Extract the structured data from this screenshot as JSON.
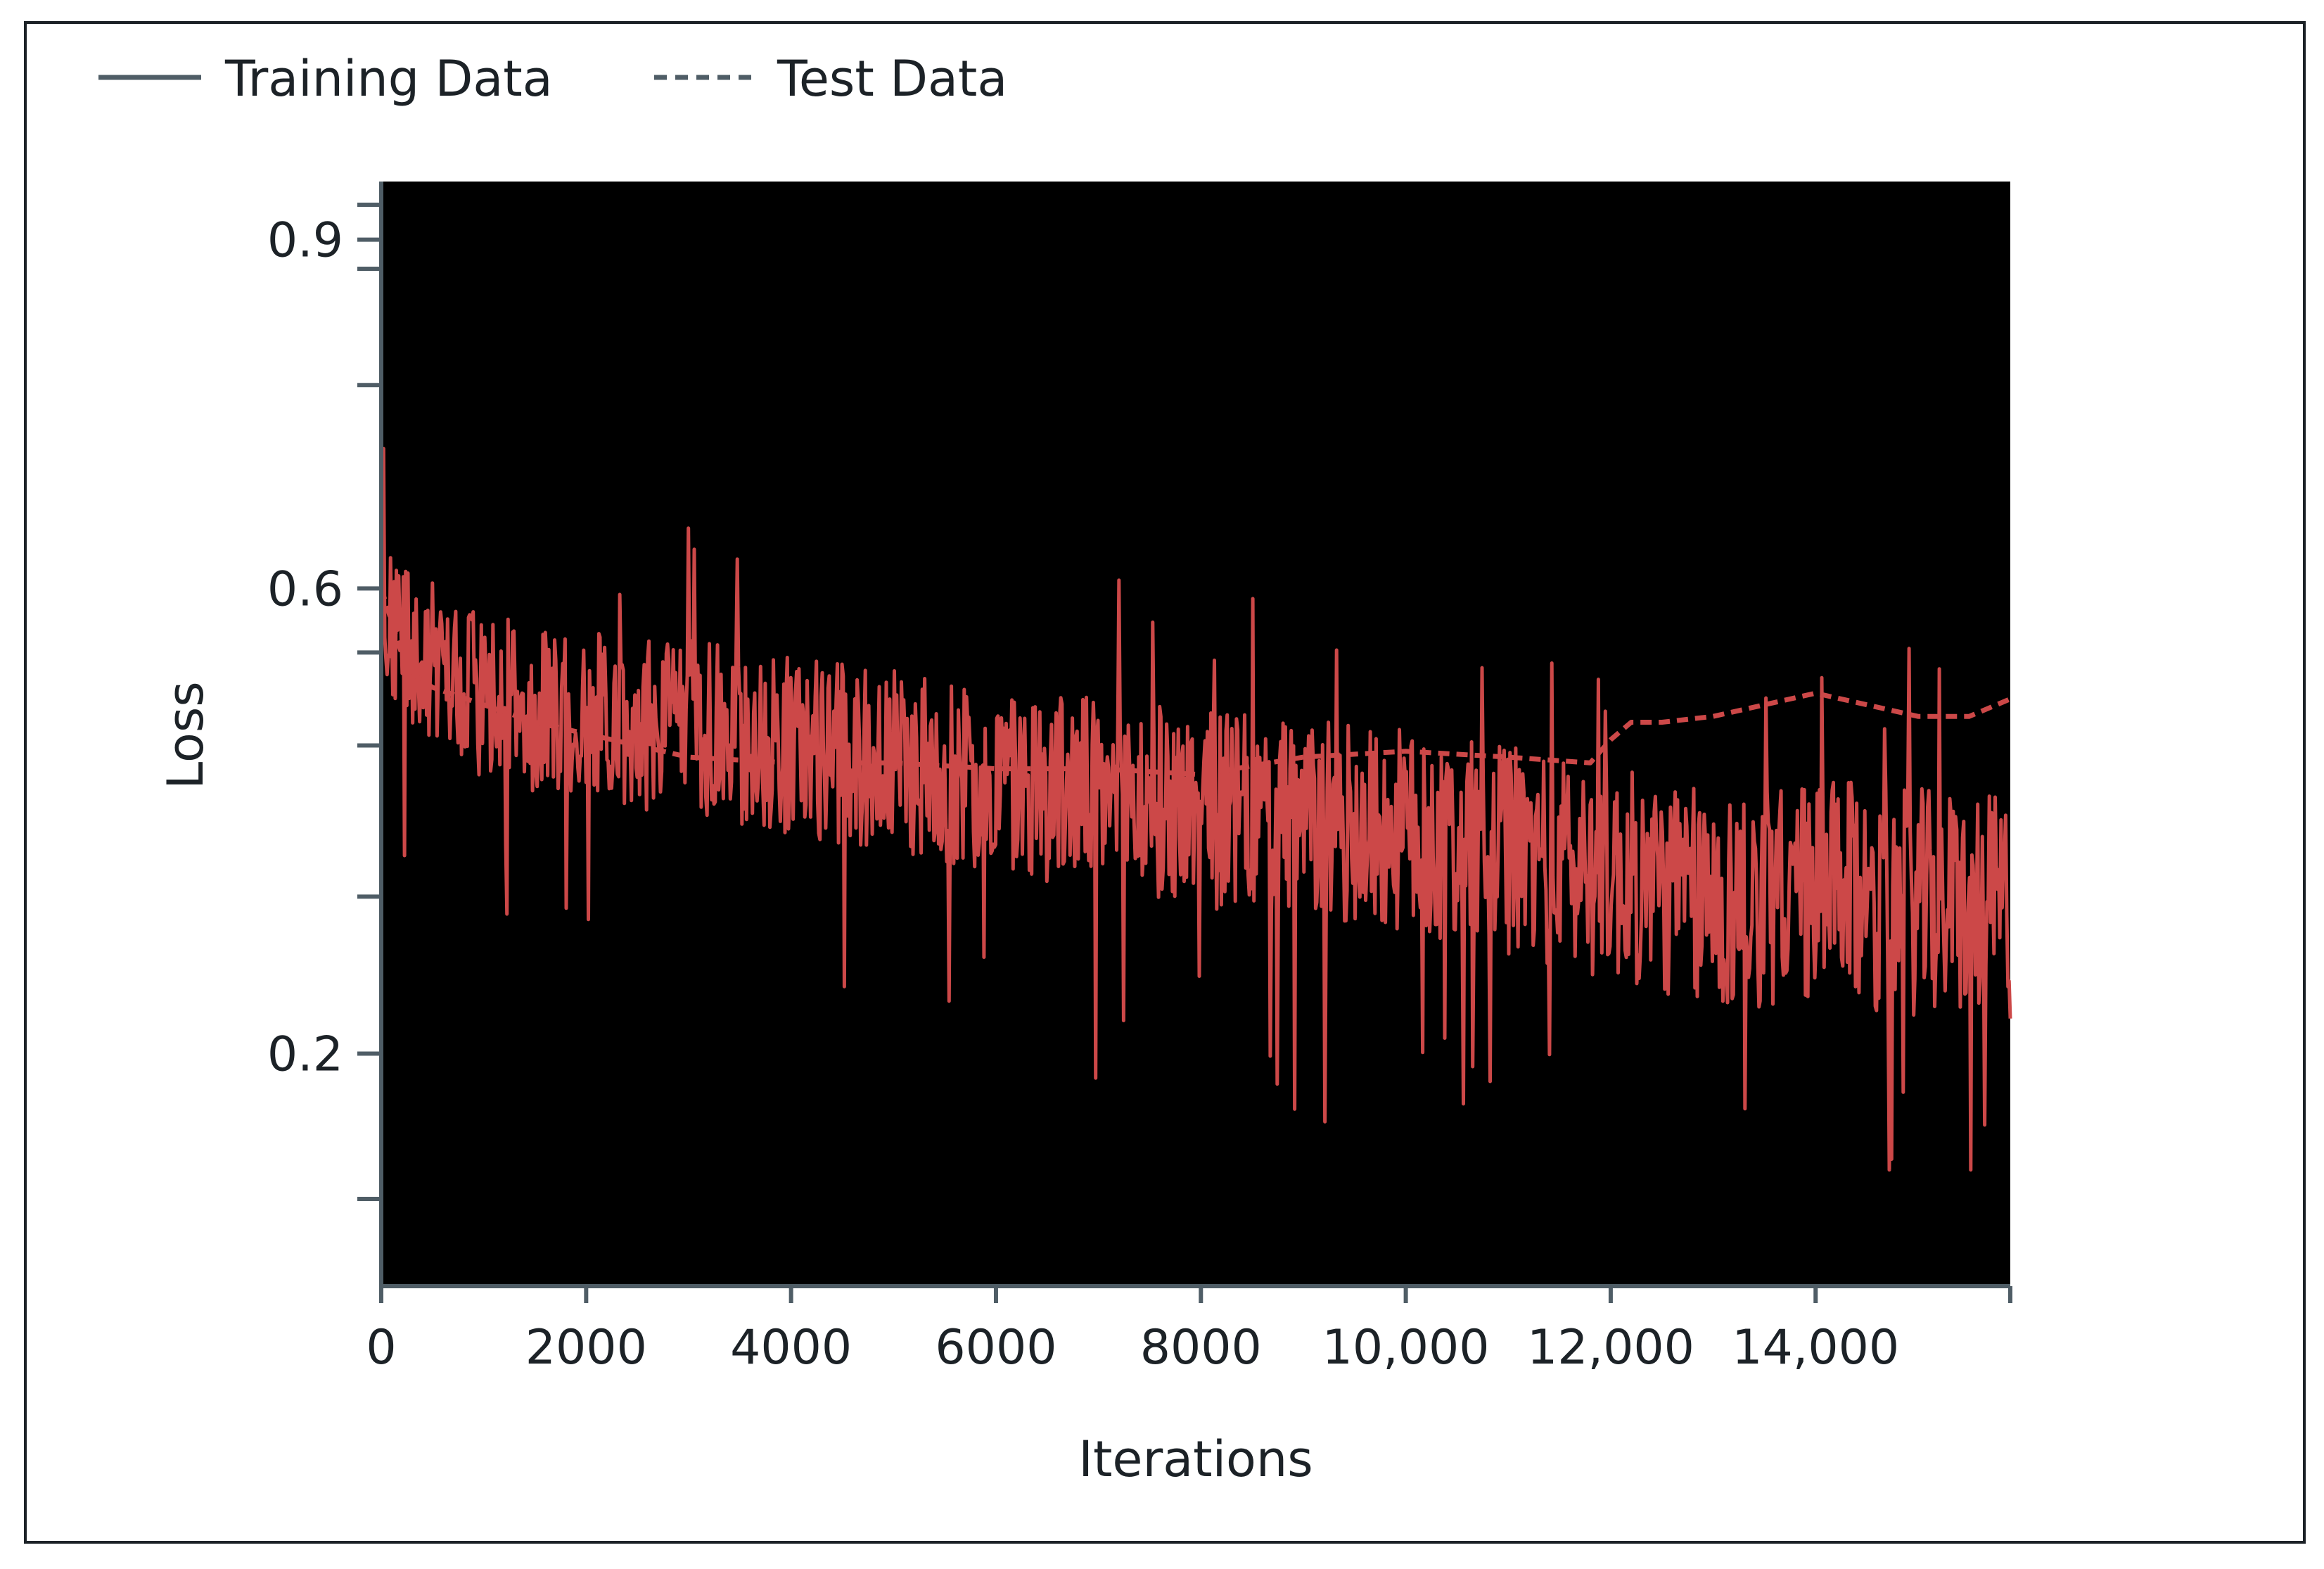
{
  "chart_data": {
    "type": "line",
    "title": "",
    "xlabel": "Iterations",
    "ylabel": "Loss",
    "x_range": [
      0,
      15900
    ],
    "y_range": [
      0.0,
      0.95
    ],
    "xticks": [
      {
        "value": 0,
        "label": "0"
      },
      {
        "value": 2000,
        "label": "2000"
      },
      {
        "value": 4000,
        "label": "4000"
      },
      {
        "value": 6000,
        "label": "6000"
      },
      {
        "value": 8000,
        "label": "8000"
      },
      {
        "value": 10000,
        "label": "10,000"
      },
      {
        "value": 12000,
        "label": "12,000"
      },
      {
        "value": 14000,
        "label": "14,000"
      },
      {
        "value": 15900,
        "label": ""
      }
    ],
    "yticks": [
      {
        "value": 0.2,
        "label": "0.2"
      },
      {
        "value": 0.6,
        "label": "0.6"
      },
      {
        "value": 0.9,
        "label": "0.9"
      }
    ],
    "y_minor_ticks": [
      0.875,
      0.93,
      0.875,
      0.775,
      0.545,
      0.465,
      0.335,
      0.075
    ],
    "legend_position": "top-left",
    "plot_background": "#000000",
    "grid": false,
    "colors": {
      "series_line": "#cc4848",
      "legend_line": "#4f5d66",
      "axis": "#4f5d66",
      "frame": "#1c2227"
    },
    "series": [
      {
        "name": "Training Data",
        "style": "solid",
        "noisy": true,
        "mean_trend": {
          "x": [
            0,
            500,
            1000,
            2000,
            3000,
            4000,
            5000,
            6000,
            7000,
            8000,
            9000,
            10000,
            11000,
            12000,
            13000,
            14000,
            15000,
            15900
          ],
          "y": [
            0.57,
            0.535,
            0.505,
            0.49,
            0.48,
            0.465,
            0.45,
            0.435,
            0.425,
            0.41,
            0.4,
            0.39,
            0.375,
            0.355,
            0.33,
            0.34,
            0.33,
            0.325
          ]
        },
        "approx_range": [
          0.1,
          0.8
        ]
      },
      {
        "name": "Test Data",
        "style": "dashed",
        "x": [
          0,
          250,
          500,
          1000,
          1500,
          2000,
          3000,
          4000,
          5000,
          6000,
          7000,
          8000,
          9000,
          10000,
          11000,
          11800,
          12000,
          12200,
          12500,
          13000,
          13500,
          14000,
          14500,
          15000,
          15500,
          15900
        ],
        "y": [
          0.6,
          0.53,
          0.515,
          0.5,
          0.485,
          0.475,
          0.455,
          0.45,
          0.45,
          0.445,
          0.445,
          0.44,
          0.455,
          0.46,
          0.455,
          0.45,
          0.47,
          0.485,
          0.485,
          0.49,
          0.5,
          0.51,
          0.5,
          0.49,
          0.49,
          0.505
        ]
      }
    ]
  }
}
